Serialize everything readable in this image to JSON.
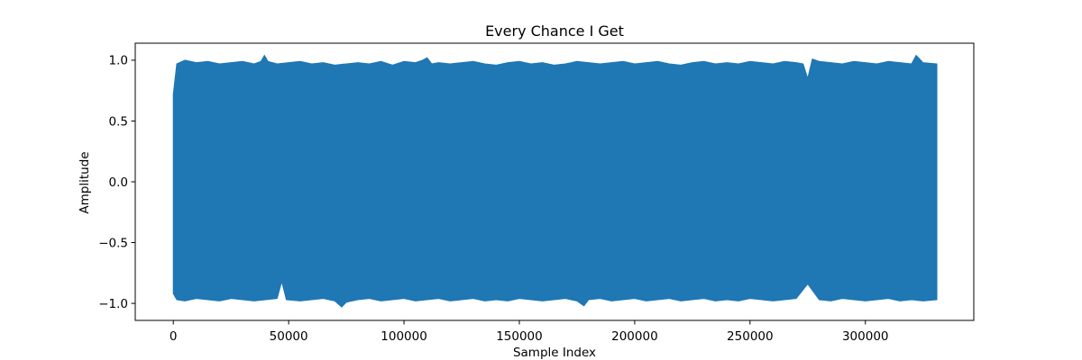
{
  "chart_data": {
    "type": "line",
    "title": "Every Chance I Get",
    "xlabel": "Sample Index",
    "ylabel": "Amplitude",
    "xlim": [
      -16500,
      347000
    ],
    "ylim": [
      -1.14,
      1.14
    ],
    "x_ticks": [
      0,
      50000,
      100000,
      150000,
      200000,
      250000,
      300000
    ],
    "x_tick_labels": [
      "0",
      "50000",
      "100000",
      "150000",
      "200000",
      "250000",
      "300000"
    ],
    "y_ticks": [
      -1.0,
      -0.5,
      0.0,
      0.5,
      1.0
    ],
    "y_tick_labels": [
      "−1.0",
      "−0.5",
      "0.0",
      "0.5",
      "1.0"
    ],
    "series": [
      {
        "color": "#1f77b4",
        "x_range": [
          0,
          331000
        ],
        "upper_envelope": {
          "x": [
            0,
            1500,
            5000,
            10000,
            15000,
            20000,
            25000,
            30000,
            35000,
            38000,
            39500,
            41000,
            45000,
            50000,
            55000,
            60000,
            65000,
            70000,
            75000,
            80000,
            85000,
            90000,
            95000,
            100000,
            105000,
            108000,
            110000,
            112000,
            115000,
            120000,
            125000,
            130000,
            135000,
            140000,
            145000,
            150000,
            155000,
            160000,
            165000,
            170000,
            175000,
            180000,
            185000,
            190000,
            195000,
            200000,
            205000,
            210000,
            215000,
            220000,
            225000,
            230000,
            235000,
            240000,
            245000,
            250000,
            255000,
            260000,
            265000,
            270000,
            273000,
            275000,
            277000,
            280000,
            285000,
            290000,
            295000,
            300000,
            305000,
            310000,
            315000,
            320000,
            322000,
            325000,
            331000
          ],
          "y": [
            0.72,
            0.97,
            1.0,
            0.98,
            0.99,
            0.97,
            0.98,
            0.99,
            0.97,
            0.99,
            1.04,
            0.99,
            0.97,
            0.98,
            0.99,
            0.97,
            0.98,
            0.96,
            0.97,
            0.98,
            0.97,
            0.99,
            0.96,
            0.99,
            0.98,
            1.0,
            1.02,
            0.97,
            0.98,
            0.97,
            0.98,
            0.99,
            0.97,
            0.96,
            0.98,
            0.99,
            0.97,
            0.98,
            0.96,
            0.97,
            0.99,
            0.98,
            0.97,
            0.98,
            0.99,
            0.97,
            0.98,
            0.99,
            0.97,
            0.96,
            0.98,
            0.99,
            0.97,
            0.98,
            0.97,
            0.99,
            0.98,
            0.97,
            0.99,
            0.98,
            0.97,
            0.85,
            1.01,
            0.99,
            0.98,
            0.97,
            0.99,
            0.98,
            0.97,
            0.99,
            0.98,
            0.97,
            1.04,
            0.98,
            0.97
          ]
        },
        "lower_envelope": {
          "x": [
            0,
            1500,
            5000,
            10000,
            15000,
            20000,
            25000,
            30000,
            35000,
            40000,
            45000,
            47000,
            49000,
            55000,
            60000,
            65000,
            70000,
            73000,
            75000,
            80000,
            85000,
            90000,
            95000,
            100000,
            105000,
            110000,
            115000,
            120000,
            125000,
            130000,
            135000,
            140000,
            145000,
            150000,
            155000,
            160000,
            165000,
            170000,
            175000,
            178000,
            180000,
            185000,
            190000,
            195000,
            200000,
            205000,
            210000,
            215000,
            220000,
            225000,
            230000,
            235000,
            240000,
            245000,
            250000,
            255000,
            260000,
            265000,
            270000,
            275000,
            280000,
            285000,
            290000,
            295000,
            300000,
            305000,
            310000,
            315000,
            320000,
            325000,
            331000
          ],
          "y": [
            -0.92,
            -0.97,
            -0.98,
            -0.96,
            -0.97,
            -0.98,
            -0.96,
            -0.97,
            -0.98,
            -0.97,
            -0.96,
            -0.82,
            -0.97,
            -0.98,
            -0.97,
            -0.96,
            -0.98,
            -1.03,
            -0.99,
            -0.97,
            -0.96,
            -0.98,
            -0.97,
            -0.96,
            -0.98,
            -0.97,
            -0.96,
            -0.98,
            -0.97,
            -0.96,
            -0.98,
            -0.97,
            -0.98,
            -0.96,
            -0.97,
            -0.98,
            -0.97,
            -0.96,
            -0.98,
            -1.02,
            -0.97,
            -0.96,
            -0.98,
            -0.97,
            -0.96,
            -0.98,
            -0.97,
            -0.96,
            -0.98,
            -0.97,
            -0.96,
            -0.98,
            -0.97,
            -0.98,
            -0.96,
            -0.97,
            -0.98,
            -0.97,
            -0.96,
            -0.84,
            -0.97,
            -0.98,
            -0.96,
            -0.97,
            -0.98,
            -0.97,
            -0.96,
            -0.98,
            -0.97,
            -0.98,
            -0.97
          ]
        }
      }
    ],
    "grid": false,
    "legend": "none"
  }
}
